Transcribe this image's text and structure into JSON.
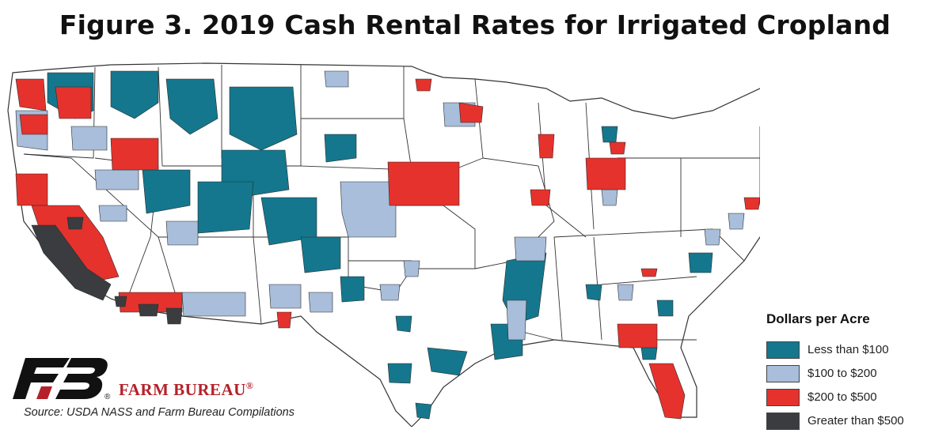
{
  "title": "Figure 3. 2019 Cash Rental Rates for Irrigated Cropland",
  "legend": {
    "title": "Dollars per Acre",
    "items": [
      {
        "label": "Less than $100",
        "color": "#14778d"
      },
      {
        "label": "$100 to $200",
        "color": "#a8bedb"
      },
      {
        "label": "$200 to $500",
        "color": "#e5322d"
      },
      {
        "label": "Greater than $500",
        "color": "#3a3c40"
      }
    ]
  },
  "map": {
    "region": "contiguous United States",
    "unit": "counties",
    "base_color": "#ffffff",
    "border_color": "#333333"
  },
  "logo": {
    "brand": "FARM BUREAU",
    "mark": "®",
    "mark_color": "#111111",
    "accent_color": "#b5212a"
  },
  "source": "Source: USDA NASS and Farm Bureau Compilations"
}
